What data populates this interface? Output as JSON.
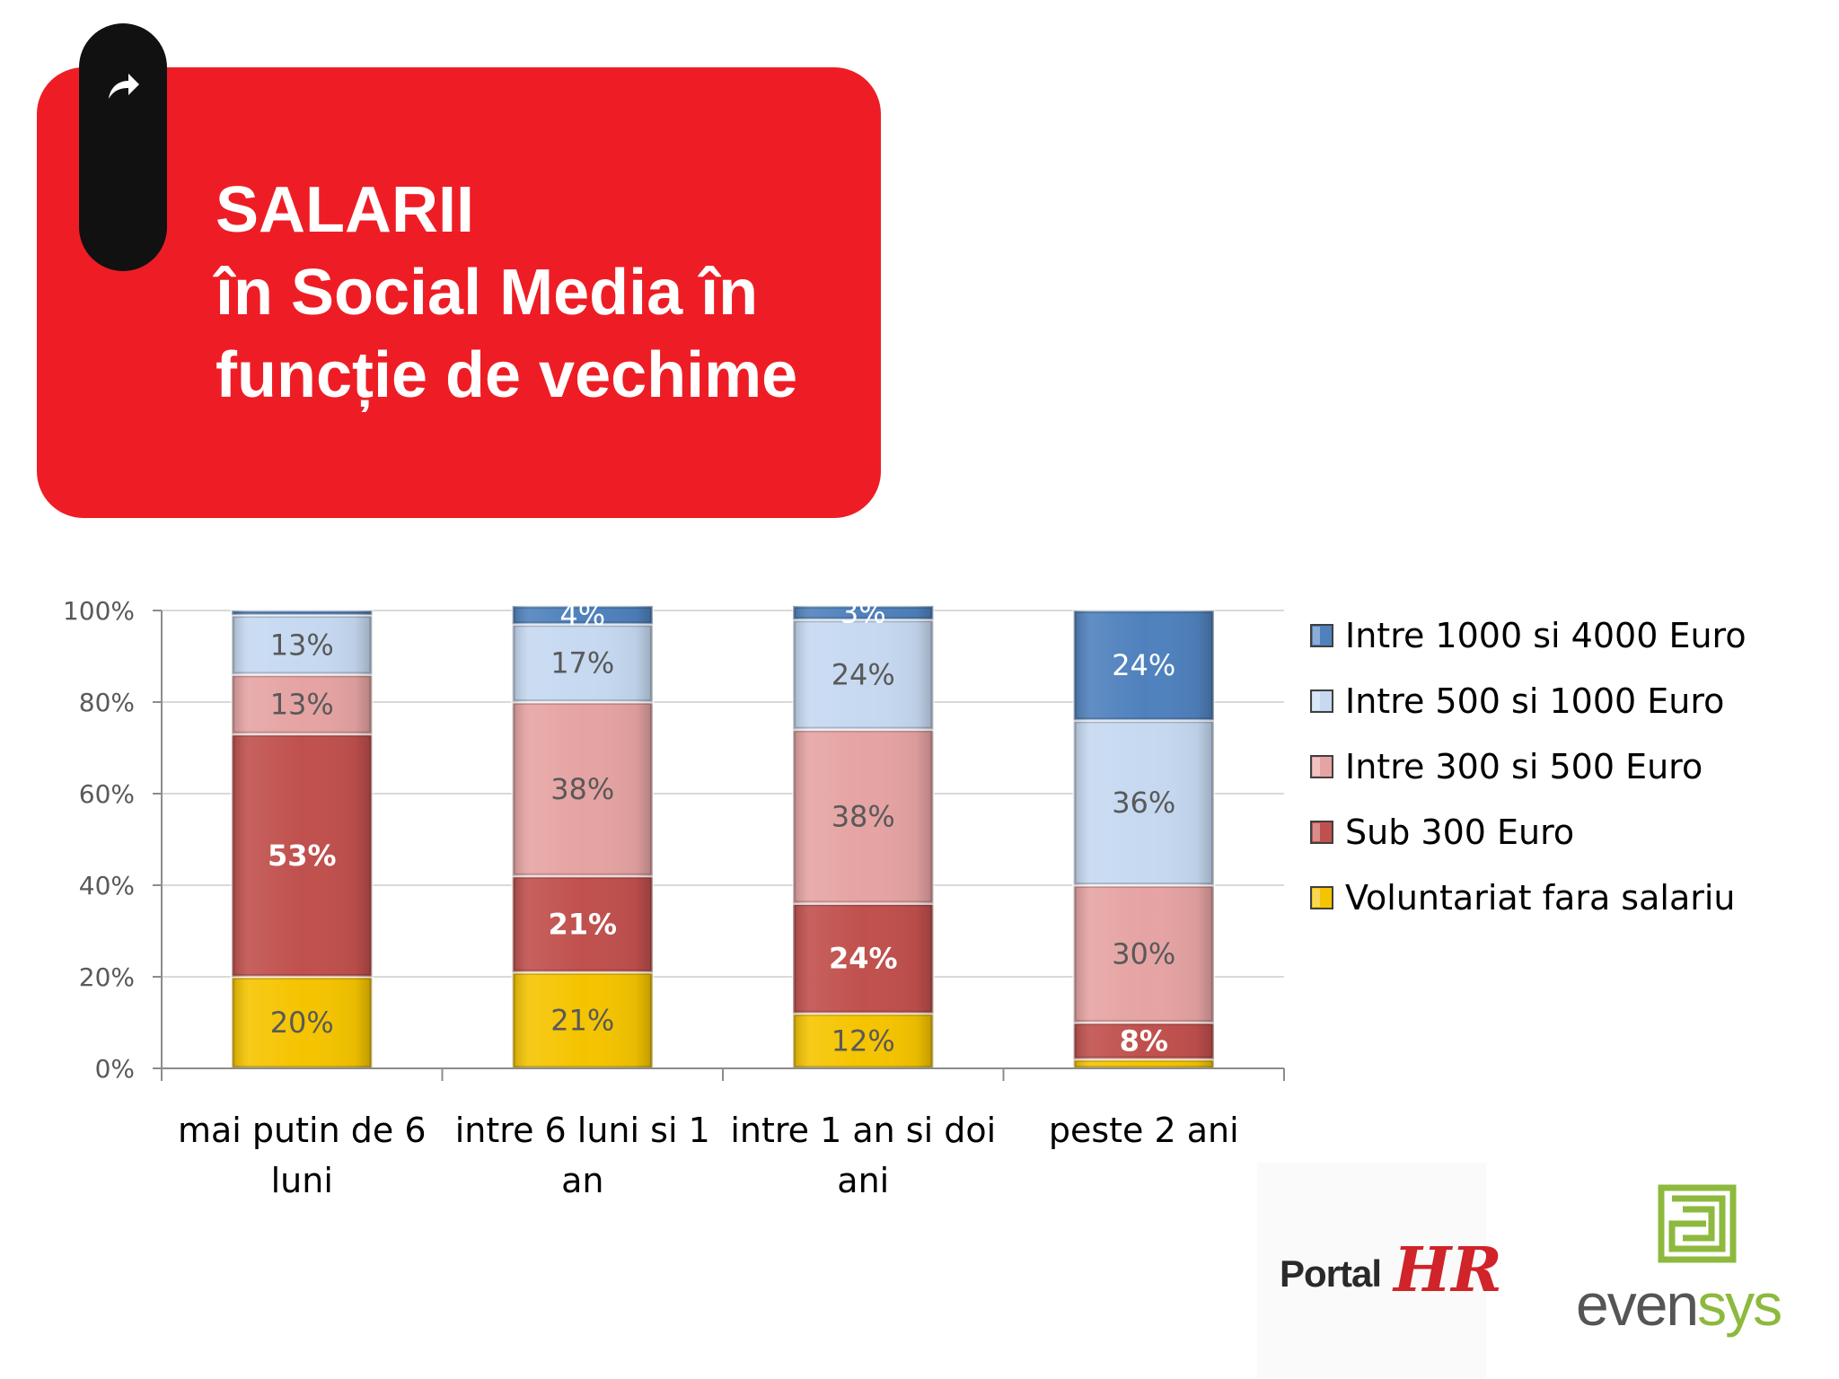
{
  "title": {
    "lines": [
      "SALARII",
      "în Social Media în",
      "funcție de vechime"
    ]
  },
  "icons": {
    "share": "share-arrow-icon"
  },
  "colors": {
    "title_bg": "#ee1d25",
    "tab_bg": "#111111"
  },
  "chart_data": {
    "type": "bar",
    "stacked": true,
    "percent_stacked": true,
    "categories": [
      [
        "mai putin de 6",
        "luni"
      ],
      [
        "intre 6 luni si 1",
        "an"
      ],
      [
        "intre 1 an si doi",
        "ani"
      ],
      [
        "peste 2 ani"
      ]
    ],
    "series": [
      {
        "name": "Voluntariat fara salariu",
        "color": "#f5c400",
        "label_color": "#595959",
        "label_bold": false,
        "values": [
          20,
          21,
          12,
          2
        ],
        "labels": [
          "20%",
          "21%",
          "12%",
          ""
        ]
      },
      {
        "name": "Sub 300 Euro",
        "color": "#c0504d",
        "label_color": "#ffffff",
        "label_bold": true,
        "values": [
          53,
          21,
          24,
          8
        ],
        "labels": [
          "53%",
          "21%",
          "24%",
          "8%"
        ]
      },
      {
        "name": "Intre 300 si 500 Euro",
        "color": "#e6a3a3",
        "label_color": "#595959",
        "label_bold": false,
        "values": [
          13,
          38,
          38,
          30
        ],
        "labels": [
          "13%",
          "38%",
          "38%",
          "30%"
        ]
      },
      {
        "name": "Intre 500 si 1000 Euro",
        "color": "#c6d9f1",
        "label_color": "#595959",
        "label_bold": false,
        "values": [
          13,
          17,
          24,
          36
        ],
        "labels": [
          "13%",
          "17%",
          "24%",
          "36%"
        ]
      },
      {
        "name": "Intre 1000 si 4000 Euro",
        "color": "#4f81bd",
        "label_color": "#ffffff",
        "label_bold": false,
        "values": [
          1,
          4,
          3,
          24
        ],
        "labels": [
          "",
          "4%",
          "3%",
          "24%"
        ]
      }
    ],
    "ylim": [
      0,
      100
    ],
    "yticks": [
      "0%",
      "20%",
      "40%",
      "60%",
      "80%",
      "100%"
    ],
    "grid": true,
    "legend": "right",
    "legend_order": [
      4,
      3,
      2,
      1,
      0
    ],
    "xlabel": "",
    "ylabel": ""
  },
  "logos": {
    "portalhr": {
      "word": "Portal",
      "mark": "HR"
    },
    "evensys": {
      "word_a": "even",
      "word_b": "sys"
    }
  }
}
